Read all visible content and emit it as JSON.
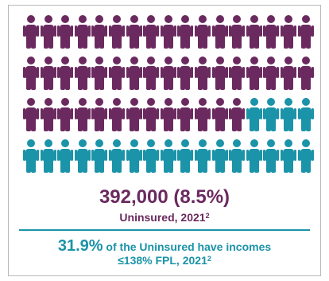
{
  "colors": {
    "purple": "#6b2a5f",
    "teal": "#1b93a8",
    "stat_text": "#6b2a5f",
    "label_text": "#6b2a5f",
    "income_text": "#1b93a8",
    "divider": "#1b93a8"
  },
  "icon_grid": {
    "rows": 4,
    "columns": 17,
    "total_icons": 68,
    "purple_icons": 47,
    "teal_icons": 21,
    "icon_name": "person-icon"
  },
  "uninsured": {
    "value": "392,000 (8.5%)",
    "label": "Uninsured, 2021",
    "footnote": "2"
  },
  "low_income": {
    "percent": "31.9%",
    "text": " of the Uninsured have incomes",
    "line2": "≤138% FPL, 2021",
    "footnote": "2"
  }
}
